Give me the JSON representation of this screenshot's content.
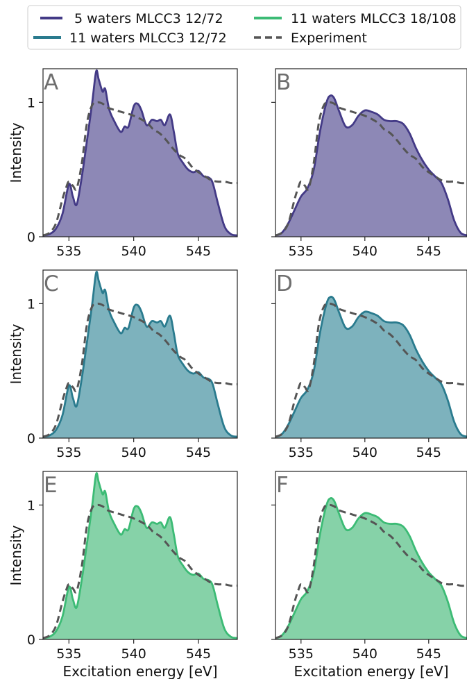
{
  "legend": {
    "entries": [
      {
        "label": "5 waters MLCC3 12/72",
        "color": "#433a86",
        "style": "solid"
      },
      {
        "label": "11 waters MLCC3 12/72",
        "color": "#2a7b8e",
        "style": "solid"
      },
      {
        "label": "11 waters MLCC3 18/108",
        "color": "#3cbb75",
        "style": "solid"
      },
      {
        "label": "Experiment",
        "color": "#555555",
        "style": "dashed"
      }
    ]
  },
  "colors": {
    "purple_line": "#433a86",
    "purple_fill": "#8d88b6",
    "teal_line": "#2a7b8e",
    "teal_fill": "#7db2bd",
    "green_line": "#3cbb75",
    "green_fill": "#86d2a8",
    "experiment": "#555555"
  },
  "chart_data": [
    {
      "type": "area",
      "panel": "A",
      "series": "5 waters MLCC3 12/72",
      "style": "sharp",
      "color_key": "purple",
      "xlim": [
        533,
        548
      ],
      "ylim": [
        0,
        1.25
      ],
      "xticks": [
        535,
        540,
        545
      ],
      "yticks": [
        0,
        1
      ],
      "ylabel": "Intensity",
      "xlabel": ""
    },
    {
      "type": "area",
      "panel": "B",
      "series": "5 waters MLCC3 12/72",
      "style": "smooth",
      "color_key": "purple",
      "xlim": [
        533,
        548
      ],
      "ylim": [
        0,
        1.25
      ],
      "xticks": [
        535,
        540,
        545
      ],
      "yticks": [],
      "ylabel": "",
      "xlabel": ""
    },
    {
      "type": "area",
      "panel": "C",
      "series": "11 waters MLCC3 12/72",
      "style": "sharp",
      "color_key": "teal",
      "xlim": [
        533,
        548
      ],
      "ylim": [
        0,
        1.25
      ],
      "xticks": [
        535,
        540,
        545
      ],
      "yticks": [
        0,
        1
      ],
      "ylabel": "Intensity",
      "xlabel": ""
    },
    {
      "type": "area",
      "panel": "D",
      "series": "11 waters MLCC3 12/72",
      "style": "smooth",
      "color_key": "teal",
      "xlim": [
        533,
        548
      ],
      "ylim": [
        0,
        1.25
      ],
      "xticks": [
        535,
        540,
        545
      ],
      "yticks": [],
      "ylabel": "",
      "xlabel": ""
    },
    {
      "type": "area",
      "panel": "E",
      "series": "11 waters MLCC3 18/108",
      "style": "sharp",
      "color_key": "green",
      "xlim": [
        533,
        548
      ],
      "ylim": [
        0,
        1.25
      ],
      "xticks": [
        535,
        540,
        545
      ],
      "yticks": [
        0,
        1
      ],
      "ylabel": "Intensity",
      "xlabel": "Excitation energy [eV]"
    },
    {
      "type": "area",
      "panel": "F",
      "series": "11 waters MLCC3 18/108",
      "style": "smooth",
      "color_key": "green",
      "xlim": [
        533,
        548
      ],
      "ylim": [
        0,
        1.25
      ],
      "xticks": [
        535,
        540,
        545
      ],
      "yticks": [],
      "ylabel": "",
      "xlabel": "Excitation energy [eV]"
    }
  ],
  "spectra": {
    "sharp_x": [
      533,
      533.5,
      534,
      534.5,
      535,
      535.3,
      535.6,
      536,
      536.4,
      536.8,
      537.1,
      537.3,
      537.6,
      537.8,
      538.1,
      538.5,
      539,
      539.3,
      539.6,
      540,
      540.3,
      540.6,
      541,
      541.4,
      541.8,
      542.1,
      542.4,
      542.8,
      543.1,
      543.4,
      543.8,
      544.2,
      544.6,
      545,
      545.4,
      545.8,
      546.1,
      546.5,
      547,
      547.5,
      548
    ],
    "sharp_y": [
      0.01,
      0.02,
      0.06,
      0.17,
      0.39,
      0.3,
      0.24,
      0.45,
      0.72,
      1.0,
      1.23,
      1.17,
      1.08,
      1.1,
      0.95,
      0.86,
      0.78,
      0.82,
      0.82,
      0.97,
      0.99,
      0.94,
      0.83,
      0.87,
      0.86,
      0.87,
      0.83,
      0.91,
      0.78,
      0.62,
      0.55,
      0.5,
      0.48,
      0.49,
      0.45,
      0.44,
      0.4,
      0.25,
      0.08,
      0.02,
      0.01
    ],
    "smooth_x": [
      533,
      533.5,
      534,
      534.5,
      535,
      535.5,
      536,
      536.5,
      537,
      537.3,
      537.6,
      538,
      538.5,
      539,
      539.5,
      540,
      540.5,
      541,
      541.5,
      542,
      542.5,
      543,
      543.5,
      544,
      544.5,
      545,
      545.5,
      546,
      546.5,
      547,
      547.5,
      548
    ],
    "smooth_y": [
      0.01,
      0.03,
      0.1,
      0.2,
      0.3,
      0.36,
      0.5,
      0.79,
      1.0,
      1.05,
      1.03,
      0.93,
      0.82,
      0.83,
      0.9,
      0.94,
      0.93,
      0.91,
      0.87,
      0.86,
      0.86,
      0.84,
      0.77,
      0.66,
      0.57,
      0.5,
      0.45,
      0.4,
      0.28,
      0.12,
      0.03,
      0.01
    ],
    "experiment_x": [
      533,
      533.5,
      534,
      534.5,
      534.8,
      535,
      535.3,
      535.6,
      536,
      536.4,
      536.8,
      537.2,
      537.6,
      538,
      539,
      540,
      541,
      541.5,
      542,
      542.5,
      543,
      543.5,
      544,
      544.5,
      545,
      545.5,
      546,
      546.5,
      547,
      547.5,
      548
    ],
    "experiment_y": [
      0.01,
      0.03,
      0.1,
      0.28,
      0.37,
      0.41,
      0.38,
      0.36,
      0.55,
      0.85,
      0.98,
      1.0,
      0.99,
      0.96,
      0.93,
      0.9,
      0.85,
      0.8,
      0.77,
      0.72,
      0.66,
      0.61,
      0.58,
      0.52,
      0.48,
      0.45,
      0.42,
      0.41,
      0.41,
      0.4,
      0.4
    ]
  }
}
